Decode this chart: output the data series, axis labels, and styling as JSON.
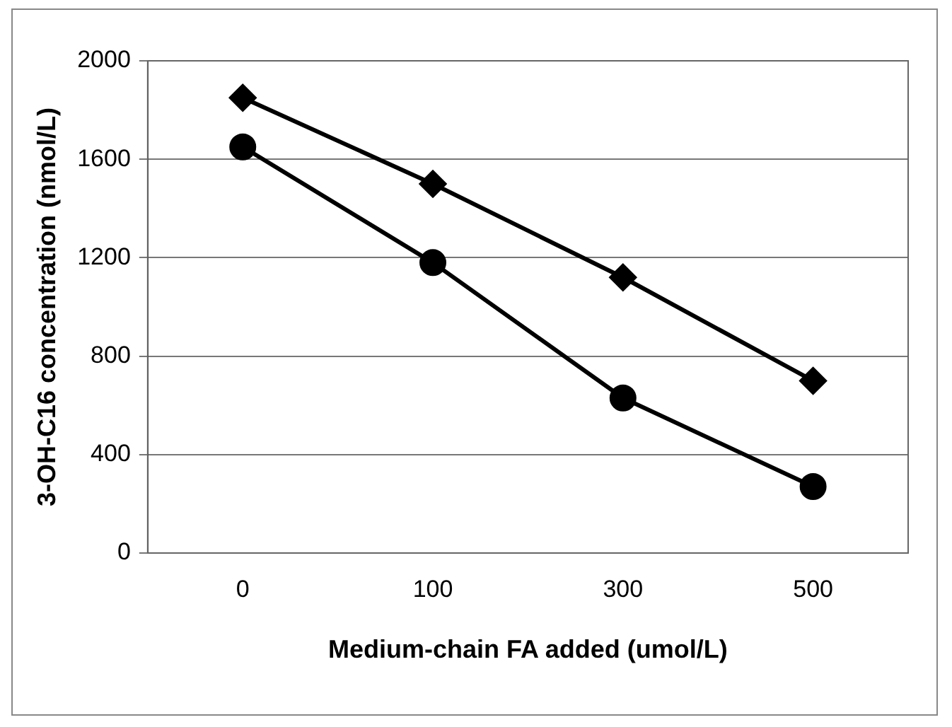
{
  "chart_data": {
    "type": "line",
    "xlabel": "Medium-chain FA added (umol/L)",
    "ylabel": "3-OH-C16 concentration (nmol/L)",
    "categories": [
      "0",
      "100",
      "300",
      "500"
    ],
    "series": [
      {
        "color": "#000000",
        "marker": "diamond",
        "values": [
          1850,
          1500,
          1120,
          700
        ]
      },
      {
        "color": "#000000",
        "marker": "circle",
        "values": [
          1650,
          1180,
          630,
          270
        ]
      }
    ],
    "ylim": [
      0,
      2000
    ],
    "yticks": [
      0,
      400,
      800,
      1200,
      1600,
      2000
    ],
    "grid": "y",
    "legend": false,
    "line_style": "solid"
  }
}
